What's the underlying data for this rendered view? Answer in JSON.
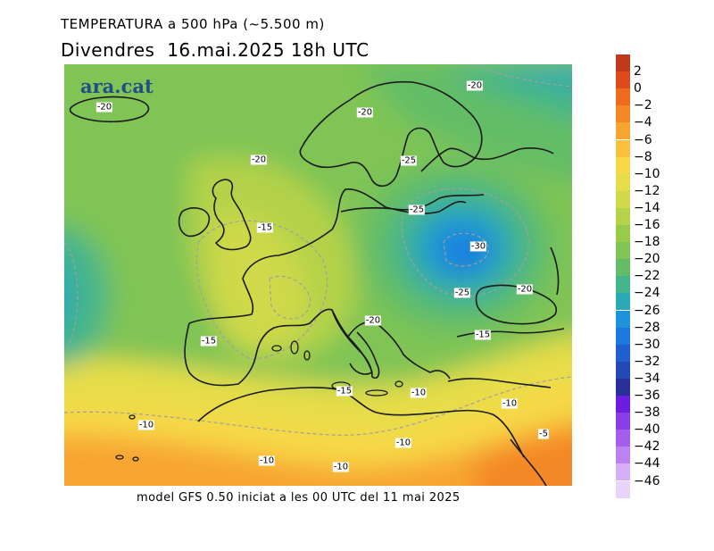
{
  "header": {
    "title": "TEMPERATURA a 500 hPa (~5.500 m)",
    "subtitle": "Divendres  16.mai.2025 18h UTC"
  },
  "map": {
    "logo": "ara.cat",
    "contour_labels": [
      {
        "text": "-25",
        "lon": 1.0,
        "lat": 1.0
      },
      {
        "text": "-20",
        "lon": 0.0,
        "lat": 0.0
      }
    ],
    "labels": [
      "-20",
      "-20",
      "-20",
      "-20",
      "-25",
      "-25",
      "-15",
      "-30",
      "-25",
      "-20",
      "-20",
      "-15",
      "-15",
      "-15",
      "-10",
      "-10",
      "-10",
      "-10",
      "-5",
      "-10",
      "-10"
    ]
  },
  "legend": {
    "ticks": [
      "2",
      "0",
      "−2",
      "−4",
      "−6",
      "−8",
      "−10",
      "−12",
      "−14",
      "−16",
      "−18",
      "−20",
      "−22",
      "−24",
      "−26",
      "−28",
      "−30",
      "−32",
      "−34",
      "−36",
      "−38",
      "−40",
      "−42",
      "−44",
      "−46"
    ],
    "colors": [
      "#c0391b",
      "#dd4a1b",
      "#ee6a1e",
      "#f48826",
      "#f7a531",
      "#f9c13b",
      "#f7d846",
      "#e6dd49",
      "#cfd94a",
      "#b4d24a",
      "#98cb4c",
      "#7fc455",
      "#64bd66",
      "#44b58a",
      "#2ba9b4",
      "#1e93da",
      "#1d78e0",
      "#1f5fcf",
      "#2448b4",
      "#2a2f9a",
      "#6b1ee0",
      "#8a3ee6",
      "#a35fea",
      "#bc82ef",
      "#d6aef6",
      "#ead5fa"
    ]
  },
  "footer": "model GFS 0.50 iniciat a les 00 UTC del 11 mai 2025"
}
